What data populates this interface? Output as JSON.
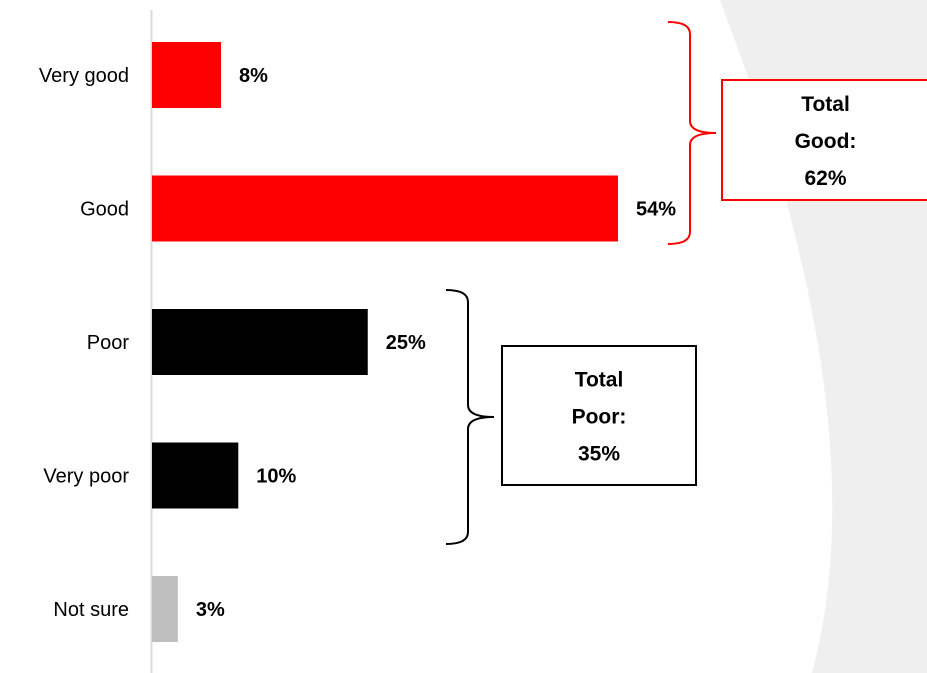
{
  "colors": {
    "background_panel": "#efefef",
    "good": "#ff0000",
    "poor": "#000000",
    "not_sure": "#bfbfbf",
    "axis": "#d9d9d9"
  },
  "chart_data": {
    "type": "bar",
    "orientation": "horizontal",
    "categories": [
      "Very good",
      "Good",
      "Poor",
      "Very poor",
      "Not sure"
    ],
    "values": [
      8,
      54,
      25,
      10,
      3
    ],
    "value_labels": [
      "8%",
      "54%",
      "25%",
      "10%",
      "3%"
    ],
    "bar_colors": [
      "#ff0000",
      "#ff0000",
      "#000000",
      "#000000",
      "#bfbfbf"
    ],
    "xlim": [
      0,
      60
    ],
    "grid": false,
    "annotations": [
      {
        "group": "good",
        "lines": [
          "Total",
          "Good:",
          "62%"
        ],
        "color": "#ff0000",
        "spans": [
          "Very good",
          "Good"
        ]
      },
      {
        "group": "poor",
        "lines": [
          "Total",
          "Poor:",
          "35%"
        ],
        "color": "#000000",
        "spans": [
          "Poor",
          "Very poor"
        ]
      }
    ]
  }
}
